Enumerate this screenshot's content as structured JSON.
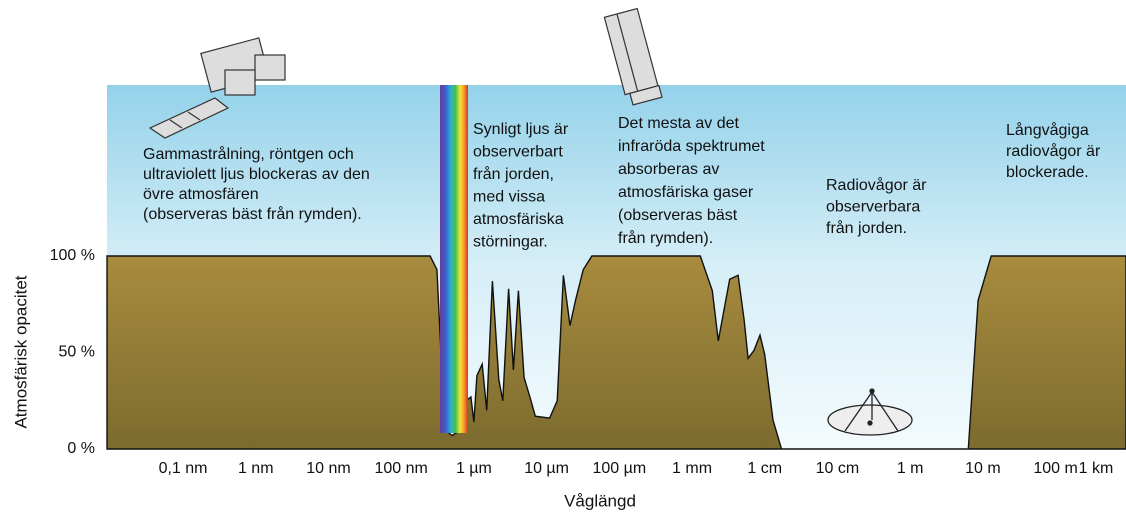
{
  "chart_data": {
    "type": "area",
    "y_label": "Atmosfärisk opacitet",
    "x_label": "Våglängd",
    "x_scale": "log",
    "xlim": [
      9e-12,
      930
    ],
    "xticks": [
      {
        "value": 1e-10,
        "label": "0,1 nm"
      },
      {
        "value": 1e-09,
        "label": "1 nm"
      },
      {
        "value": 1e-08,
        "label": "10 nm"
      },
      {
        "value": 1e-07,
        "label": "100 nm"
      },
      {
        "value": 1e-06,
        "label": "1 µm"
      },
      {
        "value": 1e-05,
        "label": "10 µm"
      },
      {
        "value": 0.0001,
        "label": "100 µm"
      },
      {
        "value": 0.001,
        "label": "1 mm"
      },
      {
        "value": 0.01,
        "label": "1 cm"
      },
      {
        "value": 0.1,
        "label": "10 cm"
      },
      {
        "value": 1,
        "label": "1 m"
      },
      {
        "value": 10,
        "label": "10 m"
      },
      {
        "value": 100,
        "label": "100 m"
      },
      {
        "value": 1000,
        "label": "1 km"
      }
    ],
    "ylim": [
      0,
      100
    ],
    "yticks": [
      {
        "value": 0,
        "label": "0 %"
      },
      {
        "value": 50,
        "label": "50 %"
      },
      {
        "value": 100,
        "label": "100 %"
      }
    ],
    "color": "#a0843a",
    "x": [
      9e-12,
      2.5e-07,
      3.1e-07,
      3.8e-07,
      4.3e-07,
      5e-07,
      6.1e-07,
      6.9e-07,
      7.8e-07,
      9.1e-07,
      1e-06,
      1.1e-06,
      1.3e-06,
      1.5e-06,
      1.8e-06,
      2.2e-06,
      2.5e-06,
      3e-06,
      3.5e-06,
      4.1e-06,
      4.9e-06,
      5.9e-06,
      7e-06,
      1.1e-05,
      1.4e-05,
      1.7e-05,
      2.1e-05,
      2.5e-05,
      3.2e-05,
      4.2e-05,
      0.0013,
      0.0019,
      0.0023,
      0.0026,
      0.0033,
      0.0043,
      0.0052,
      0.0059,
      0.0071,
      0.0086,
      0.01,
      0.013,
      0.017,
      6.3,
      8.6,
      13,
      930
    ],
    "values": [
      100,
      100,
      93,
      25,
      9,
      7,
      9,
      15,
      25,
      27,
      14,
      38,
      44,
      20,
      87,
      36,
      25,
      83,
      41,
      82,
      37,
      27,
      17,
      16,
      25,
      90,
      64,
      77,
      93,
      100,
      100,
      82,
      56,
      67,
      88,
      90,
      67,
      47,
      51,
      59,
      49,
      15,
      0,
      0,
      77,
      100,
      100
    ],
    "annotations": [
      {
        "lines": [
          "Gammastrålning, röntgen och",
          "ultraviolett ljus blockeras av den",
          "övre atmosfären",
          "(observeras bäst från rymden)."
        ]
      },
      {
        "lines": [
          "Synligt ljus är",
          "observerbart",
          "från jorden,",
          "med vissa",
          "atmosfäriska",
          "störningar."
        ]
      },
      {
        "lines": [
          "Det mesta av det",
          "infraröda spektrumet",
          "absorberas av",
          "atmosfäriska gaser",
          "(observeras bäst",
          " från rymden)."
        ]
      },
      {
        "lines": [
          "Radiovågor är",
          "observerbara",
          "från jorden."
        ]
      },
      {
        "lines": [
          "Långvågiga",
          "radiovågor är",
          "blockerade."
        ]
      }
    ]
  }
}
